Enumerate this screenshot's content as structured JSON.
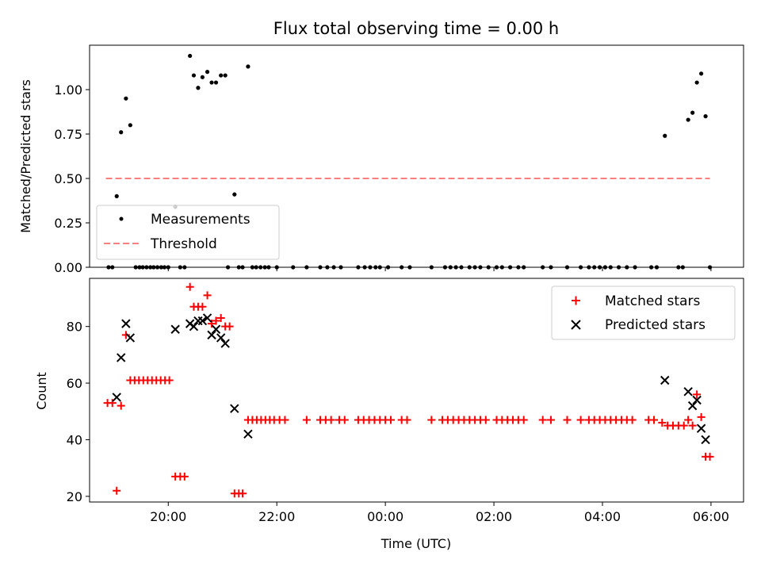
{
  "chart_data": [
    {
      "type": "scatter",
      "title": "Flux total observing time = 0.00 h",
      "xlabel": "",
      "ylabel": "Matched/Predicted stars",
      "xlim": [
        18.55,
        6.6
      ],
      "ylim": [
        0,
        1.25
      ],
      "xticks": [
        20,
        22,
        0,
        2,
        4,
        6
      ],
      "yticks": [
        0.0,
        0.25,
        0.5,
        0.75,
        1.0
      ],
      "ytick_labels": [
        "0.00",
        "0.25",
        "0.50",
        "0.75",
        "1.00"
      ],
      "legend_position": "lower-left",
      "series": [
        {
          "name": "Measurements",
          "kind": "points",
          "color": "#000000",
          "points": [
            [
              18.9,
              0.0
            ],
            [
              18.97,
              0.0
            ],
            [
              19.05,
              0.4
            ],
            [
              19.13,
              0.76
            ],
            [
              19.22,
              0.95
            ],
            [
              19.3,
              0.8
            ],
            [
              19.4,
              0.0
            ],
            [
              19.47,
              0.0
            ],
            [
              19.53,
              0.0
            ],
            [
              19.6,
              0.0
            ],
            [
              19.67,
              0.0
            ],
            [
              19.73,
              0.0
            ],
            [
              19.8,
              0.0
            ],
            [
              19.87,
              0.0
            ],
            [
              19.93,
              0.0
            ],
            [
              20.0,
              0.0
            ],
            [
              20.13,
              0.34
            ],
            [
              20.22,
              0.0
            ],
            [
              20.3,
              0.0
            ],
            [
              20.4,
              1.19
            ],
            [
              20.47,
              1.08
            ],
            [
              20.55,
              1.01
            ],
            [
              20.63,
              1.07
            ],
            [
              20.72,
              1.1
            ],
            [
              20.8,
              1.04
            ],
            [
              20.88,
              1.04
            ],
            [
              20.97,
              1.08
            ],
            [
              21.05,
              1.08
            ],
            [
              21.22,
              0.41
            ],
            [
              21.1,
              0.0
            ],
            [
              21.3,
              0.0
            ],
            [
              21.37,
              0.0
            ],
            [
              21.47,
              1.13
            ],
            [
              21.55,
              0.0
            ],
            [
              21.62,
              0.0
            ],
            [
              21.7,
              0.0
            ],
            [
              21.78,
              0.0
            ],
            [
              21.85,
              0.0
            ],
            [
              22.0,
              0.0
            ],
            [
              22.3,
              0.0
            ],
            [
              22.55,
              0.0
            ],
            [
              22.8,
              0.0
            ],
            [
              22.93,
              0.0
            ],
            [
              23.05,
              0.0
            ],
            [
              23.18,
              0.0
            ],
            [
              23.5,
              0.0
            ],
            [
              23.62,
              0.0
            ],
            [
              23.72,
              0.0
            ],
            [
              23.82,
              0.0
            ],
            [
              23.9,
              0.0
            ],
            [
              24.05,
              0.0
            ],
            [
              24.3,
              0.0
            ],
            [
              24.45,
              0.0
            ],
            [
              24.85,
              0.0
            ],
            [
              25.1,
              0.0
            ],
            [
              25.2,
              0.0
            ],
            [
              25.3,
              0.0
            ],
            [
              25.4,
              0.0
            ],
            [
              25.55,
              0.0
            ],
            [
              25.65,
              0.0
            ],
            [
              25.75,
              0.0
            ],
            [
              25.9,
              0.0
            ],
            [
              26.05,
              0.0
            ],
            [
              26.15,
              0.0
            ],
            [
              26.3,
              0.0
            ],
            [
              26.45,
              0.0
            ],
            [
              26.55,
              0.0
            ],
            [
              26.9,
              0.0
            ],
            [
              27.05,
              0.0
            ],
            [
              27.35,
              0.0
            ],
            [
              27.6,
              0.0
            ],
            [
              27.75,
              0.0
            ],
            [
              27.85,
              0.0
            ],
            [
              27.95,
              0.0
            ],
            [
              28.05,
              0.0
            ],
            [
              28.15,
              0.0
            ],
            [
              28.3,
              0.0
            ],
            [
              28.45,
              0.0
            ],
            [
              28.6,
              0.0
            ],
            [
              28.9,
              0.0
            ],
            [
              29.0,
              0.0
            ],
            [
              29.15,
              0.74
            ],
            [
              29.4,
              0.0
            ],
            [
              29.48,
              0.0
            ],
            [
              29.58,
              0.83
            ],
            [
              29.66,
              0.87
            ],
            [
              29.74,
              1.04
            ],
            [
              29.82,
              1.09
            ],
            [
              29.9,
              0.85
            ],
            [
              29.98,
              0.0
            ]
          ]
        },
        {
          "name": "Threshold",
          "kind": "dashed-line",
          "color": "#ff7f7f",
          "x": [
            18.85,
            29.98
          ],
          "y": [
            0.5,
            0.5
          ]
        }
      ]
    },
    {
      "type": "scatter",
      "title": "",
      "xlabel": "Time (UTC)",
      "ylabel": "Count",
      "xlim": [
        18.55,
        6.6
      ],
      "ylim": [
        18,
        97
      ],
      "xticks": [
        20,
        22,
        0,
        2,
        4,
        6
      ],
      "xtick_labels": [
        "20:00",
        "22:00",
        "00:00",
        "02:00",
        "04:00",
        "06:00"
      ],
      "yticks": [
        20,
        40,
        60,
        80
      ],
      "ytick_labels": [
        "20",
        "40",
        "60",
        "80"
      ],
      "legend_position": "top-right",
      "series": [
        {
          "name": "Matched stars",
          "kind": "plus",
          "color": "#ff0000",
          "points": [
            [
              18.88,
              53
            ],
            [
              18.97,
              53
            ],
            [
              19.05,
              22
            ],
            [
              19.13,
              52
            ],
            [
              19.22,
              77
            ],
            [
              19.3,
              61
            ],
            [
              19.38,
              61
            ],
            [
              19.46,
              61
            ],
            [
              19.54,
              61
            ],
            [
              19.62,
              61
            ],
            [
              19.7,
              61
            ],
            [
              19.78,
              61
            ],
            [
              19.86,
              61
            ],
            [
              19.94,
              61
            ],
            [
              20.02,
              61
            ],
            [
              20.13,
              27
            ],
            [
              20.22,
              27
            ],
            [
              20.3,
              27
            ],
            [
              20.4,
              94
            ],
            [
              20.47,
              87
            ],
            [
              20.55,
              87
            ],
            [
              20.63,
              87
            ],
            [
              20.72,
              91
            ],
            [
              20.8,
              81
            ],
            [
              20.88,
              82
            ],
            [
              20.97,
              83
            ],
            [
              21.05,
              80
            ],
            [
              21.13,
              80
            ],
            [
              21.22,
              21
            ],
            [
              21.3,
              21
            ],
            [
              21.37,
              21
            ],
            [
              21.47,
              47
            ],
            [
              21.55,
              47
            ],
            [
              21.63,
              47
            ],
            [
              21.71,
              47
            ],
            [
              21.79,
              47
            ],
            [
              21.87,
              47
            ],
            [
              21.95,
              47
            ],
            [
              22.05,
              47
            ],
            [
              22.15,
              47
            ],
            [
              22.55,
              47
            ],
            [
              22.8,
              47
            ],
            [
              22.9,
              47
            ],
            [
              23.0,
              47
            ],
            [
              23.15,
              47
            ],
            [
              23.25,
              47
            ],
            [
              23.5,
              47
            ],
            [
              23.6,
              47
            ],
            [
              23.7,
              47
            ],
            [
              23.8,
              47
            ],
            [
              23.9,
              47
            ],
            [
              24.0,
              47
            ],
            [
              24.1,
              47
            ],
            [
              24.3,
              47
            ],
            [
              24.4,
              47
            ],
            [
              24.85,
              47
            ],
            [
              25.05,
              47
            ],
            [
              25.15,
              47
            ],
            [
              25.25,
              47
            ],
            [
              25.35,
              47
            ],
            [
              25.45,
              47
            ],
            [
              25.55,
              47
            ],
            [
              25.65,
              47
            ],
            [
              25.75,
              47
            ],
            [
              25.85,
              47
            ],
            [
              26.05,
              47
            ],
            [
              26.15,
              47
            ],
            [
              26.25,
              47
            ],
            [
              26.35,
              47
            ],
            [
              26.45,
              47
            ],
            [
              26.55,
              47
            ],
            [
              26.9,
              47
            ],
            [
              27.05,
              47
            ],
            [
              27.35,
              47
            ],
            [
              27.6,
              47
            ],
            [
              27.75,
              47
            ],
            [
              27.85,
              47
            ],
            [
              27.95,
              47
            ],
            [
              28.05,
              47
            ],
            [
              28.15,
              47
            ],
            [
              28.25,
              47
            ],
            [
              28.35,
              47
            ],
            [
              28.45,
              47
            ],
            [
              28.55,
              47
            ],
            [
              28.85,
              47
            ],
            [
              28.95,
              47
            ],
            [
              29.1,
              46
            ],
            [
              29.2,
              45
            ],
            [
              29.3,
              45
            ],
            [
              29.4,
              45
            ],
            [
              29.5,
              45
            ],
            [
              29.58,
              47
            ],
            [
              29.66,
              45
            ],
            [
              29.74,
              56
            ],
            [
              29.82,
              48
            ],
            [
              29.9,
              34
            ],
            [
              29.98,
              34
            ]
          ]
        },
        {
          "name": "Predicted stars",
          "kind": "cross",
          "color": "#000000",
          "points": [
            [
              19.05,
              55
            ],
            [
              19.13,
              69
            ],
            [
              19.22,
              81
            ],
            [
              19.3,
              76
            ],
            [
              20.13,
              79
            ],
            [
              20.4,
              81
            ],
            [
              20.47,
              80
            ],
            [
              20.55,
              82
            ],
            [
              20.63,
              82
            ],
            [
              20.72,
              83
            ],
            [
              20.8,
              77
            ],
            [
              20.88,
              79
            ],
            [
              20.97,
              76
            ],
            [
              21.05,
              74
            ],
            [
              21.22,
              51
            ],
            [
              21.47,
              42
            ],
            [
              29.15,
              61
            ],
            [
              29.58,
              57
            ],
            [
              29.66,
              52
            ],
            [
              29.74,
              54
            ],
            [
              29.82,
              44
            ],
            [
              29.9,
              40
            ]
          ]
        }
      ]
    }
  ]
}
